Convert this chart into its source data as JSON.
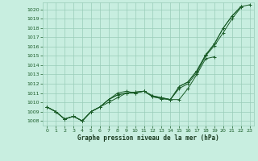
{
  "title": "Graphe pression niveau de la mer (hPa)",
  "bg_color": "#c8eee0",
  "grid_color": "#99ccb8",
  "line_color": "#1a5c28",
  "ylim": [
    1007.5,
    1020.75
  ],
  "xlim": [
    -0.5,
    23.5
  ],
  "yticks": [
    1008,
    1009,
    1010,
    1011,
    1012,
    1013,
    1014,
    1015,
    1016,
    1017,
    1018,
    1019,
    1020
  ],
  "xticks": [
    0,
    1,
    2,
    3,
    4,
    5,
    6,
    7,
    8,
    9,
    10,
    11,
    12,
    13,
    14,
    15,
    16,
    17,
    18,
    19,
    20,
    21,
    22,
    23
  ],
  "series": {
    "line1_x": [
      0,
      1,
      2,
      3,
      4,
      5,
      6,
      7,
      8,
      9,
      10,
      11,
      12,
      13,
      14,
      15,
      16,
      17,
      18,
      19,
      20,
      21,
      22
    ],
    "line1_y": [
      1009.5,
      1009.0,
      1008.2,
      1008.5,
      1008.0,
      1009.0,
      1009.5,
      1010.3,
      1011.0,
      1011.2,
      1011.0,
      1011.2,
      1010.7,
      1010.5,
      1010.3,
      1011.5,
      1012.0,
      1013.2,
      1015.0,
      1016.1,
      1017.5,
      1019.0,
      1020.2
    ],
    "line2_x": [
      0,
      1,
      2,
      3,
      4,
      5,
      6,
      7,
      8,
      9,
      10,
      11,
      12,
      13,
      14,
      15,
      16,
      17,
      18,
      19
    ],
    "line2_y": [
      1009.5,
      1009.0,
      1008.2,
      1008.5,
      1008.0,
      1009.0,
      1009.5,
      1010.0,
      1010.5,
      1011.0,
      1011.0,
      1011.2,
      1010.7,
      1010.5,
      1010.3,
      1010.3,
      1011.5,
      1013.0,
      1014.7,
      1014.9
    ],
    "line3_x": [
      0,
      1,
      2,
      3,
      4,
      5,
      6,
      7,
      8,
      9,
      10,
      11,
      12,
      13,
      14,
      15,
      16,
      17,
      18,
      19,
      20,
      21,
      22
    ],
    "line3_y": [
      1009.5,
      1009.0,
      1008.2,
      1008.5,
      1008.0,
      1009.0,
      1009.5,
      1010.3,
      1010.8,
      1011.0,
      1011.1,
      1011.2,
      1010.6,
      1010.4,
      1010.3,
      1011.7,
      1012.2,
      1013.4,
      1015.1,
      1016.3,
      1018.0,
      1019.3,
      1020.3
    ],
    "line4_x": [
      0,
      1,
      2,
      3,
      4,
      5,
      6,
      7,
      8,
      9,
      10,
      11,
      12,
      13,
      14,
      15,
      16,
      17,
      18,
      19,
      20,
      21,
      22,
      23
    ],
    "line4_y": [
      1009.5,
      1009.0,
      1008.2,
      1008.5,
      1008.0,
      1009.0,
      1009.5,
      1010.3,
      1010.8,
      1011.0,
      1011.1,
      1011.2,
      1010.6,
      1010.4,
      1010.3,
      1011.7,
      1012.2,
      1013.4,
      1015.1,
      1016.3,
      1018.0,
      1019.3,
      1020.3,
      1020.5
    ]
  }
}
